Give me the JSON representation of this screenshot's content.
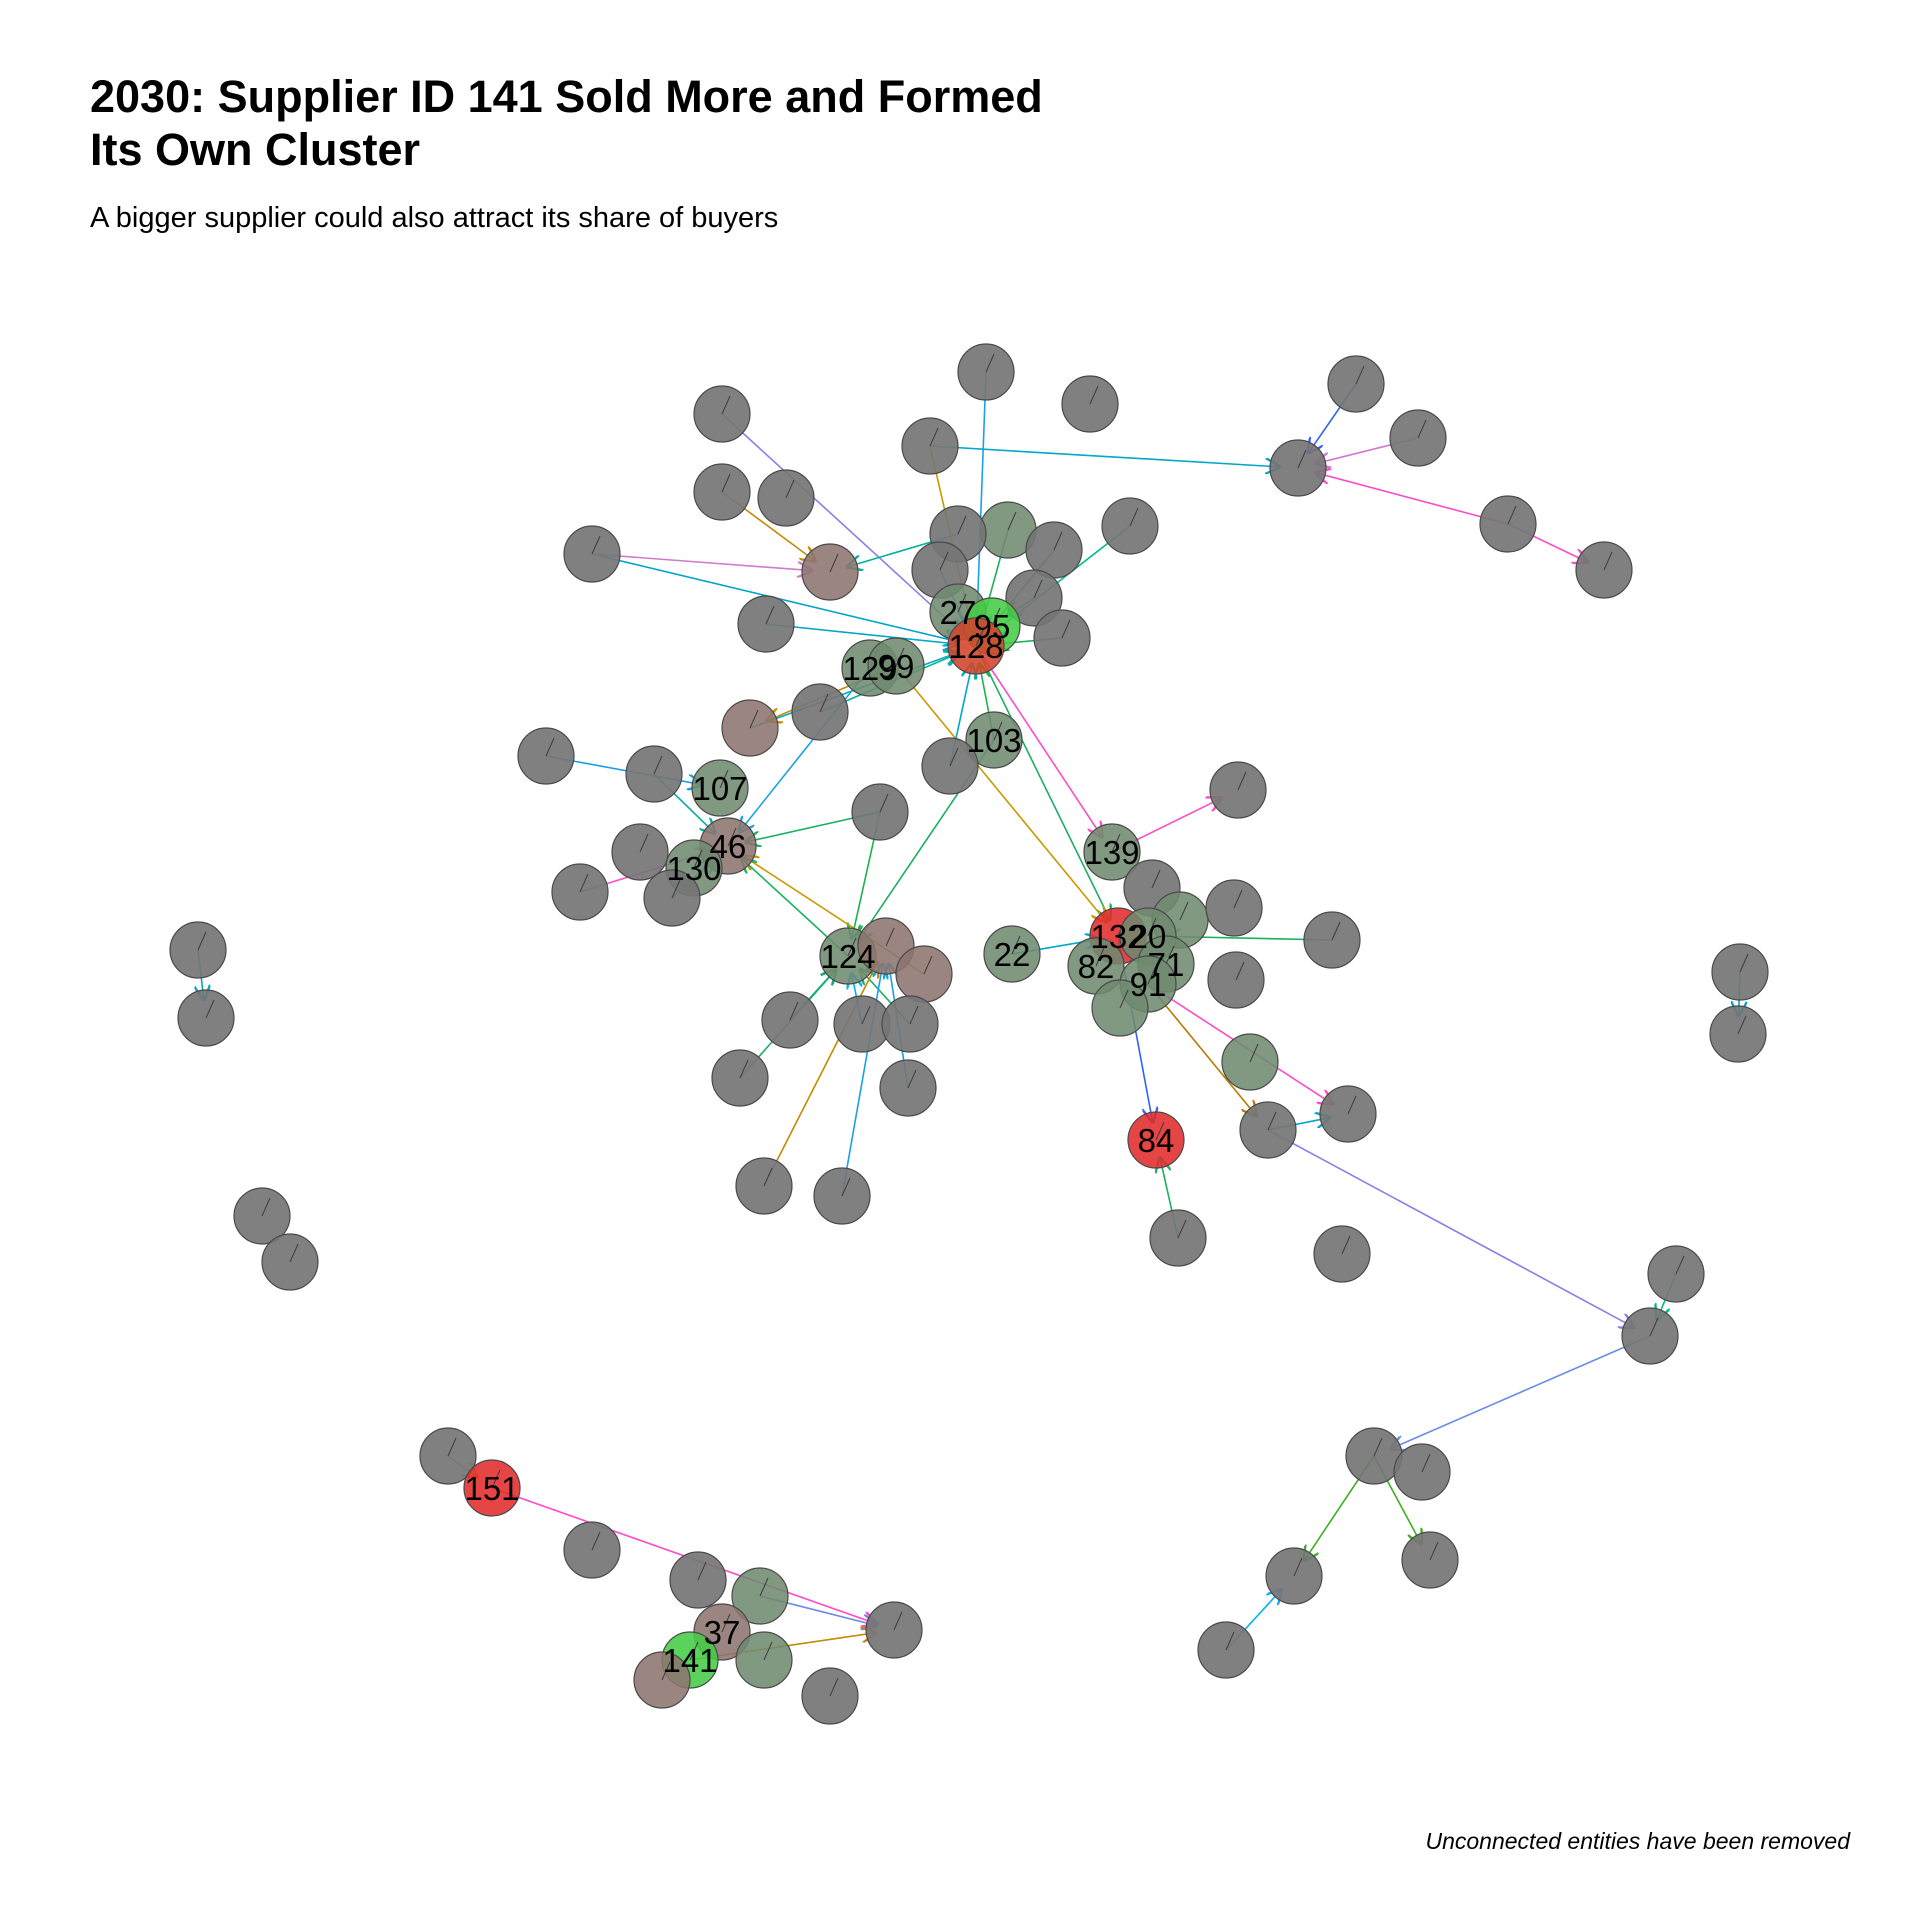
{
  "title_line1": "2030: Supplier ID 141 Sold More and Formed",
  "title_line2": "Its Own Cluster",
  "subtitle": "A bigger supplier could also attract its share of  buyers",
  "caption": "Unconnected entities have been removed",
  "node_colors": {
    "default": "#757575",
    "greenish": "#6f8a6f",
    "brownish": "#8c7470",
    "bright_green": "#44cc44",
    "red": "#e12b2b",
    "orange_red": "#d2442a"
  },
  "labels": [
    "27",
    "95",
    "128",
    "129",
    "99",
    "103",
    "107",
    "46",
    "130",
    "139",
    "132",
    "20",
    "82",
    "71",
    "91",
    "124",
    "22",
    "84",
    "151",
    "37",
    "141"
  ]
}
